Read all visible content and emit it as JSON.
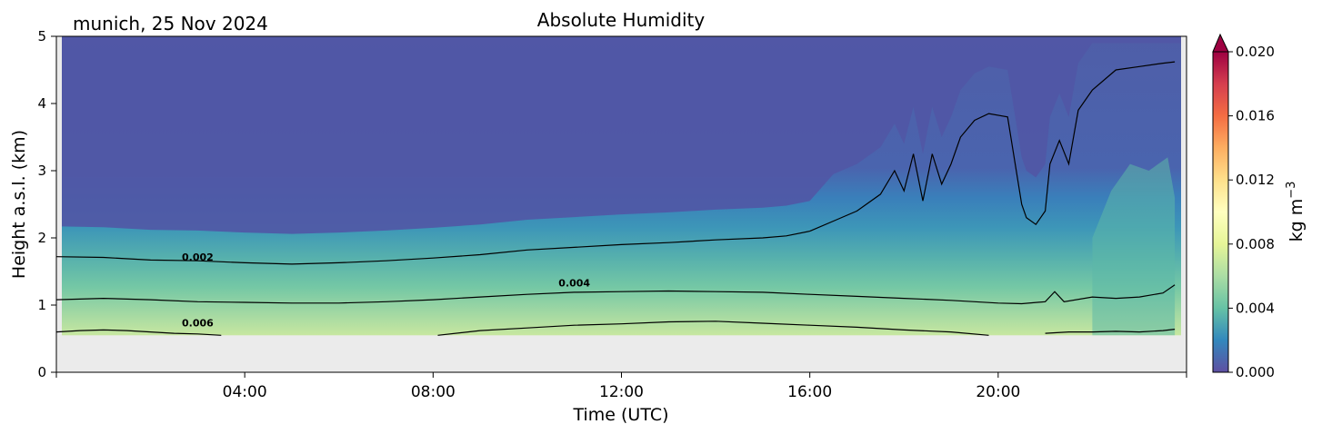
{
  "figure": {
    "title": "Absolute Humidity",
    "site_label": "munich, 25 Nov 2024"
  },
  "chart_data": {
    "type": "heatmap",
    "title": "Absolute Humidity",
    "xlabel": "Time (UTC)",
    "ylabel": "Height a.s.l. (km)",
    "xlim": [
      "00:00",
      "24:00"
    ],
    "ylim": [
      0,
      5
    ],
    "x_ticks": [
      "04:00",
      "08:00",
      "12:00",
      "16:00",
      "20:00"
    ],
    "y_ticks": [
      "0",
      "1",
      "2",
      "3",
      "4",
      "5"
    ],
    "data_bottom_km": 0.55,
    "colorbar": {
      "label": "kg m",
      "label_exponent": "−3",
      "range": [
        0.0,
        0.02
      ],
      "ticks": [
        "0.000",
        "0.004",
        "0.008",
        "0.012",
        "0.016",
        "0.020"
      ],
      "colormap": "Spectral_r",
      "extend": "max",
      "colors": [
        "#5e4fa2",
        "#3288bd",
        "#66c2a5",
        "#abdda4",
        "#e6f598",
        "#ffffbf",
        "#fee08b",
        "#fdae61",
        "#f46d43",
        "#d53e4f",
        "#9e0142"
      ]
    },
    "contours": [
      {
        "level_label": "0.002",
        "label_at": [
          "03:00",
          1.66
        ],
        "times_h": [
          0,
          1,
          2,
          3,
          4,
          5,
          6,
          7,
          8,
          9,
          10,
          11,
          12,
          13,
          14,
          15,
          15.5,
          16,
          16.5,
          17,
          17.5,
          17.8,
          18,
          18.2,
          18.4,
          18.6,
          18.8,
          19,
          19.2,
          19.5,
          19.8,
          20.2,
          20.5,
          20.6,
          20.8,
          21,
          21.1,
          21.3,
          21.5,
          21.7,
          22,
          22.5,
          23,
          23.5,
          24
        ],
        "heights_km": [
          1.72,
          1.71,
          1.67,
          1.66,
          1.63,
          1.61,
          1.63,
          1.66,
          1.7,
          1.75,
          1.82,
          1.86,
          1.9,
          1.93,
          1.97,
          2.0,
          2.03,
          2.1,
          2.25,
          2.4,
          2.65,
          3.0,
          2.7,
          3.25,
          2.55,
          3.25,
          2.8,
          3.1,
          3.5,
          3.75,
          3.85,
          3.8,
          2.5,
          2.3,
          2.2,
          2.4,
          3.1,
          3.45,
          3.1,
          3.9,
          4.2,
          4.5,
          4.55,
          4.6,
          4.62
        ]
      },
      {
        "level_label": "0.004",
        "label_at": [
          "11:00",
          1.28
        ],
        "times_h": [
          0,
          1,
          2,
          3,
          4,
          5,
          6,
          7,
          8,
          9,
          10,
          11,
          12,
          13,
          14,
          15,
          16,
          17,
          18,
          19,
          20,
          20.5,
          21,
          21.2,
          21.4,
          22,
          22.5,
          23,
          23.5,
          24
        ],
        "heights_km": [
          1.08,
          1.1,
          1.08,
          1.05,
          1.04,
          1.03,
          1.03,
          1.05,
          1.08,
          1.12,
          1.16,
          1.19,
          1.2,
          1.21,
          1.2,
          1.19,
          1.16,
          1.13,
          1.1,
          1.07,
          1.03,
          1.02,
          1.05,
          1.2,
          1.05,
          1.12,
          1.1,
          1.12,
          1.18,
          1.3
        ]
      },
      {
        "level_label": "0.006",
        "label_at": [
          "03:00",
          0.68
        ],
        "segments": [
          {
            "times_h": [
              0,
              0.5,
              1,
              1.5,
              2,
              2.5,
              3,
              3.5
            ],
            "heights_km": [
              0.6,
              0.62,
              0.63,
              0.62,
              0.6,
              0.58,
              0.57,
              0.55
            ]
          },
          {
            "times_h": [
              8.1,
              9,
              10,
              11,
              12,
              13,
              14,
              15,
              16,
              17,
              18,
              19,
              19.8
            ],
            "heights_km": [
              0.55,
              0.62,
              0.66,
              0.7,
              0.72,
              0.75,
              0.76,
              0.73,
              0.7,
              0.67,
              0.63,
              0.6,
              0.55
            ]
          },
          {
            "times_h": [
              21,
              21.5,
              22,
              22.5,
              23,
              23.5,
              24
            ],
            "heights_km": [
              0.58,
              0.6,
              0.6,
              0.61,
              0.6,
              0.62,
              0.64
            ]
          }
        ]
      }
    ]
  }
}
